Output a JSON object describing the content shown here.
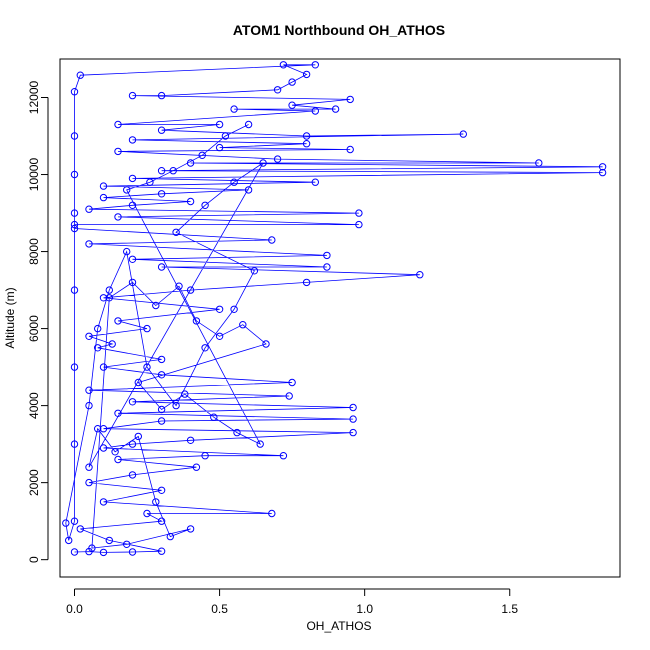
{
  "chart_data": {
    "type": "scatter",
    "title": "ATOM1 Northbound OH_ATHOS",
    "xlabel": "OH_ATHOS",
    "ylabel": "Altitude (m)",
    "xlim": [
      -0.05,
      1.88
    ],
    "ylim": [
      -450,
      13000
    ],
    "x_ticks": [
      "0.0",
      "0.5",
      "1.0",
      "1.5"
    ],
    "x_tick_values": [
      0,
      0.5,
      1.0,
      1.5
    ],
    "y_ticks": [
      "0",
      "2000",
      "4000",
      "6000",
      "8000",
      "10000",
      "12000"
    ],
    "y_tick_values": [
      0,
      2000,
      4000,
      6000,
      8000,
      10000,
      12000
    ],
    "grid": false,
    "legend": "none",
    "marker": "open-circle",
    "connected": true,
    "color": "#0000ff",
    "series": [
      {
        "points": [
          [
            0.0,
            200
          ],
          [
            0.05,
            210
          ],
          [
            0.1,
            190
          ],
          [
            0.2,
            200
          ],
          [
            0.3,
            220
          ],
          [
            0.12,
            500
          ],
          [
            0.02,
            800
          ],
          [
            0.3,
            1000
          ],
          [
            0.25,
            1200
          ],
          [
            0.68,
            1200
          ],
          [
            0.1,
            1500
          ],
          [
            0.3,
            1800
          ],
          [
            0.05,
            2000
          ],
          [
            0.2,
            2200
          ],
          [
            0.42,
            2400
          ],
          [
            0.15,
            2600
          ],
          [
            0.45,
            2700
          ],
          [
            0.72,
            2700
          ],
          [
            0.1,
            2900
          ],
          [
            0.2,
            3000
          ],
          [
            0.4,
            3100
          ],
          [
            0.96,
            3300
          ],
          [
            0.1,
            3400
          ],
          [
            0.3,
            3600
          ],
          [
            0.96,
            3650
          ],
          [
            0.15,
            3800
          ],
          [
            0.96,
            3950
          ],
          [
            0.2,
            4100
          ],
          [
            0.74,
            4250
          ],
          [
            0.05,
            4400
          ],
          [
            0.75,
            4600
          ],
          [
            0.3,
            4800
          ],
          [
            0.1,
            5000
          ],
          [
            0.3,
            5200
          ],
          [
            0.08,
            5500
          ],
          [
            0.13,
            5600
          ],
          [
            0.05,
            5800
          ],
          [
            0.25,
            6000
          ],
          [
            0.15,
            6200
          ],
          [
            0.5,
            6500
          ],
          [
            0.1,
            6800
          ],
          [
            0.4,
            7000
          ],
          [
            0.8,
            7200
          ],
          [
            1.19,
            7400
          ],
          [
            0.3,
            7600
          ],
          [
            0.87,
            7600
          ],
          [
            0.2,
            7800
          ],
          [
            0.87,
            7900
          ],
          [
            0.05,
            8200
          ],
          [
            0.68,
            8300
          ],
          [
            0.0,
            8600
          ],
          [
            0.0,
            8700
          ],
          [
            0.98,
            8700
          ],
          [
            0.15,
            8900
          ],
          [
            0.98,
            9000
          ],
          [
            0.05,
            9100
          ],
          [
            0.2,
            9200
          ],
          [
            0.4,
            9300
          ],
          [
            0.1,
            9400
          ],
          [
            0.3,
            9500
          ],
          [
            0.6,
            9600
          ],
          [
            0.1,
            9700
          ],
          [
            0.83,
            9800
          ],
          [
            0.2,
            9900
          ],
          [
            1.82,
            10050
          ],
          [
            0.3,
            10100
          ],
          [
            1.82,
            10200
          ],
          [
            0.4,
            10300
          ],
          [
            1.6,
            10300
          ],
          [
            0.7,
            10400
          ],
          [
            0.15,
            10600
          ],
          [
            0.95,
            10650
          ],
          [
            0.5,
            10700
          ],
          [
            0.8,
            10800
          ],
          [
            0.2,
            10900
          ],
          [
            1.34,
            11050
          ],
          [
            0.8,
            11000
          ],
          [
            0.3,
            11150
          ],
          [
            0.5,
            11300
          ],
          [
            0.15,
            11300
          ],
          [
            0.83,
            11650
          ],
          [
            0.55,
            11700
          ],
          [
            0.9,
            11700
          ],
          [
            0.75,
            11800
          ],
          [
            0.95,
            11950
          ],
          [
            0.2,
            12050
          ],
          [
            0.3,
            12050
          ],
          [
            0.7,
            12200
          ],
          [
            0.75,
            12400
          ],
          [
            0.8,
            12600
          ],
          [
            0.72,
            12850
          ],
          [
            0.83,
            12850
          ],
          [
            0.02,
            12580
          ],
          [
            0.0,
            12150
          ],
          [
            0.0,
            11000
          ],
          [
            0.0,
            10000
          ],
          [
            0.0,
            9000
          ],
          [
            0.0,
            7000
          ],
          [
            0.0,
            5000
          ],
          [
            0.0,
            3000
          ],
          [
            0.0,
            1000
          ],
          [
            -0.02,
            500
          ],
          [
            -0.03,
            950
          ],
          [
            0.05,
            4000
          ],
          [
            0.08,
            6000
          ],
          [
            0.12,
            7000
          ],
          [
            0.18,
            8000
          ],
          [
            0.25,
            5000
          ],
          [
            0.35,
            4000
          ],
          [
            0.45,
            5500
          ],
          [
            0.55,
            6500
          ],
          [
            0.62,
            7500
          ],
          [
            0.35,
            8500
          ],
          [
            0.45,
            9200
          ],
          [
            0.55,
            9800
          ],
          [
            0.65,
            10300
          ],
          [
            0.05,
            2400
          ],
          [
            0.08,
            3400
          ],
          [
            0.14,
            2800
          ],
          [
            0.22,
            3200
          ],
          [
            0.28,
            1500
          ],
          [
            0.33,
            600
          ],
          [
            0.4,
            800
          ],
          [
            0.18,
            400
          ],
          [
            0.06,
            300
          ],
          [
            0.12,
            6800
          ],
          [
            0.2,
            7200
          ],
          [
            0.28,
            6600
          ],
          [
            0.36,
            7100
          ],
          [
            0.42,
            6200
          ],
          [
            0.5,
            5800
          ],
          [
            0.58,
            6100
          ],
          [
            0.66,
            5600
          ],
          [
            0.22,
            4600
          ],
          [
            0.3,
            3900
          ],
          [
            0.38,
            4300
          ],
          [
            0.48,
            3700
          ],
          [
            0.56,
            3300
          ],
          [
            0.64,
            3000
          ],
          [
            0.18,
            9600
          ],
          [
            0.26,
            9800
          ],
          [
            0.34,
            10100
          ],
          [
            0.44,
            10500
          ],
          [
            0.52,
            11000
          ],
          [
            0.6,
            11300
          ]
        ]
      }
    ]
  }
}
